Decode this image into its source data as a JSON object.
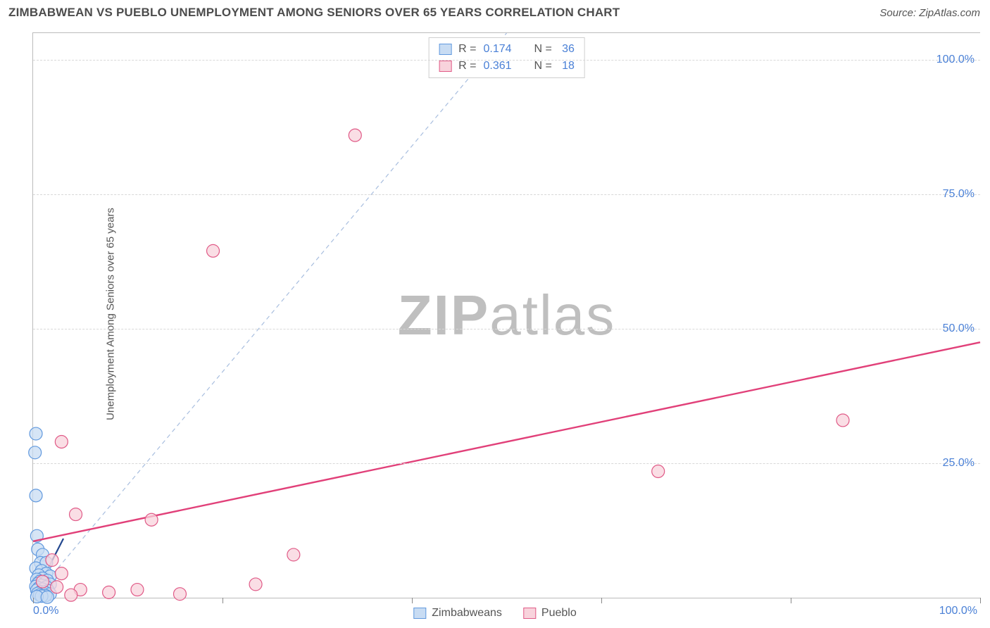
{
  "header": {
    "title": "ZIMBABWEAN VS PUEBLO UNEMPLOYMENT AMONG SENIORS OVER 65 YEARS CORRELATION CHART",
    "source_label": "Source: ",
    "source_value": "ZipAtlas.com"
  },
  "watermark": {
    "bold": "ZIP",
    "light": "atlas"
  },
  "chart": {
    "type": "scatter",
    "xlim": [
      0,
      100
    ],
    "ylim": [
      0,
      105
    ],
    "yticks": [
      25,
      50,
      75,
      100
    ],
    "ytick_labels": [
      "25.0%",
      "50.0%",
      "75.0%",
      "100.0%"
    ],
    "xticks": [
      0,
      20,
      40,
      60,
      80,
      100
    ],
    "x_axis_label_left": "0.0%",
    "x_axis_label_right": "100.0%",
    "ylabel": "Unemployment Among Seniors over 65 years",
    "tick_label_color": "#4a80d6",
    "gridline_color": "#d8d8d8",
    "background_color": "#ffffff",
    "marker_radius": 9,
    "marker_stroke_width": 1.2,
    "diag_line": {
      "color": "#a8bedf",
      "dash": "6,5",
      "width": 1.2
    },
    "series": [
      {
        "name": "Zimbabweans",
        "fill": "#c8dcf3",
        "stroke": "#6199de",
        "r_value": "0.174",
        "n_value": "36",
        "trend": {
          "x1": 0,
          "y1": 0,
          "x2": 3.2,
          "y2": 11,
          "color": "#23488f",
          "width": 2.2
        },
        "points": [
          [
            0.3,
            30.5
          ],
          [
            0.2,
            27.0
          ],
          [
            0.3,
            19.0
          ],
          [
            0.4,
            11.5
          ],
          [
            0.5,
            9.0
          ],
          [
            1.0,
            8.0
          ],
          [
            0.8,
            6.5
          ],
          [
            1.4,
            6.5
          ],
          [
            0.3,
            5.5
          ],
          [
            0.9,
            5.0
          ],
          [
            1.4,
            4.5
          ],
          [
            0.6,
            4.2
          ],
          [
            1.8,
            4.0
          ],
          [
            1.0,
            3.6
          ],
          [
            0.4,
            3.4
          ],
          [
            1.5,
            3.2
          ],
          [
            0.7,
            3.0
          ],
          [
            1.2,
            2.8
          ],
          [
            0.5,
            2.6
          ],
          [
            1.8,
            2.5
          ],
          [
            0.9,
            2.3
          ],
          [
            0.3,
            2.1
          ],
          [
            1.4,
            2.0
          ],
          [
            0.6,
            1.8
          ],
          [
            1.0,
            1.6
          ],
          [
            0.4,
            1.4
          ],
          [
            1.6,
            1.3
          ],
          [
            0.8,
            1.1
          ],
          [
            1.2,
            1.0
          ],
          [
            0.5,
            0.8
          ],
          [
            1.8,
            0.7
          ],
          [
            0.7,
            0.5
          ],
          [
            1.3,
            0.4
          ],
          [
            0.9,
            0.3
          ],
          [
            0.4,
            0.2
          ],
          [
            1.5,
            0.1
          ]
        ]
      },
      {
        "name": "Pueblo",
        "fill": "#f8d3dc",
        "stroke": "#e05a87",
        "r_value": "0.361",
        "n_value": "18",
        "trend": {
          "x1": 0,
          "y1": 10.5,
          "x2": 100,
          "y2": 47.5,
          "color": "#e14079",
          "width": 2.4
        },
        "points": [
          [
            34.0,
            86.0
          ],
          [
            19.0,
            64.5
          ],
          [
            85.5,
            33.0
          ],
          [
            66.0,
            23.5
          ],
          [
            3.0,
            29.0
          ],
          [
            4.5,
            15.5
          ],
          [
            23.5,
            2.5
          ],
          [
            12.5,
            14.5
          ],
          [
            11.0,
            1.5
          ],
          [
            15.5,
            0.7
          ],
          [
            5.0,
            1.5
          ],
          [
            8.0,
            1.0
          ],
          [
            2.0,
            7.0
          ],
          [
            3.0,
            4.5
          ],
          [
            27.5,
            8.0
          ],
          [
            1.0,
            3.0
          ],
          [
            2.5,
            2.0
          ],
          [
            4.0,
            0.5
          ]
        ]
      }
    ],
    "legend_top": {
      "r_label": "R =",
      "n_label": "N ="
    }
  }
}
